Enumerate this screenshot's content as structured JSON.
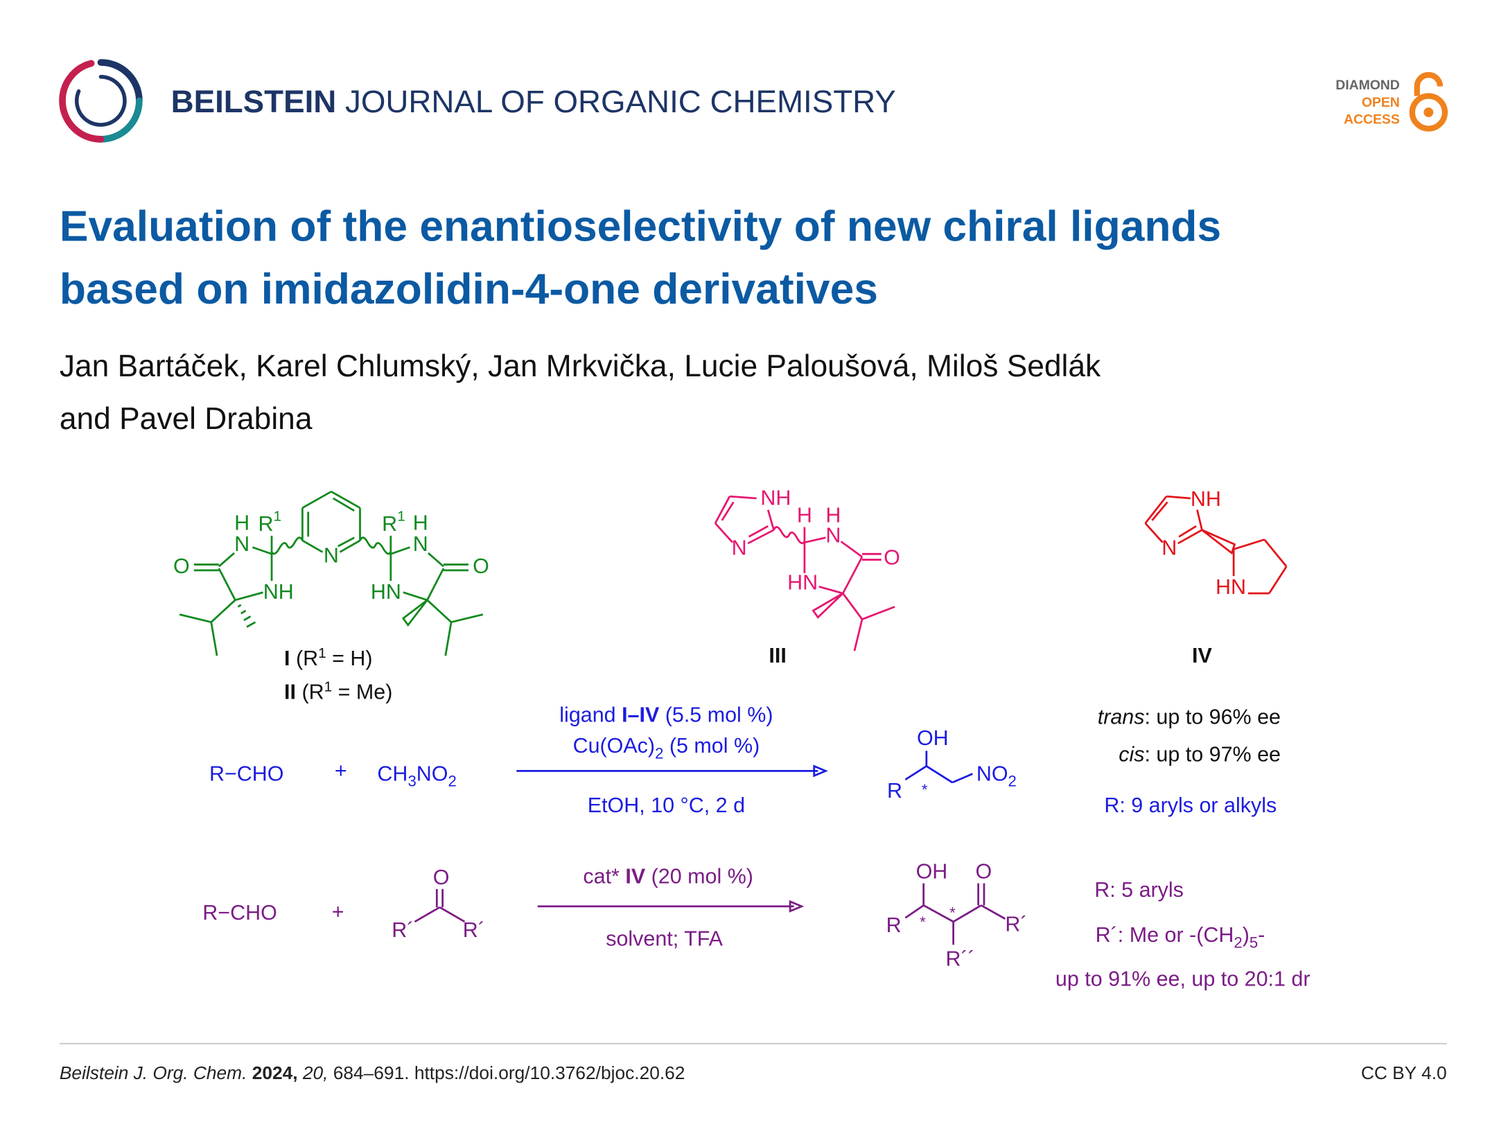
{
  "header": {
    "journal_bold": "BEILSTEIN",
    "journal_rest": "JOURNAL OF ORGANIC CHEMISTRY",
    "badge": [
      "DIAMOND",
      "OPEN",
      "ACCESS"
    ]
  },
  "title": [
    "Evaluation of the enantioselectivity of new chiral ligands",
    "based on imidazolidin-4-one derivatives"
  ],
  "authors": [
    "Jan Bartáček, Karel Chlumský, Jan Mrkvička, Lucie Paloušová, Miloš Sedlák",
    "and Pavel Drabina"
  ],
  "scheme": {
    "ligand_1_2": {
      "atoms": [
        "H",
        "R",
        "1",
        "N",
        "NH",
        "O",
        "N",
        "R",
        "1",
        "H",
        "N",
        "HN",
        "O"
      ],
      "captions": [
        [
          "I",
          " (R",
          "1",
          " = H)"
        ],
        [
          "II",
          " (R",
          "1",
          " = Me)"
        ]
      ]
    },
    "ligand_3": {
      "atoms": [
        "NH",
        "N",
        "H",
        "H",
        "N",
        "HN",
        "O"
      ],
      "caption": "III"
    },
    "ligand_4": {
      "atoms": [
        "NH",
        "N",
        "HN"
      ],
      "caption": "IV"
    },
    "reaction_1": {
      "reactant_1": "R−CHO",
      "plus": "+",
      "reactant_2": [
        "CH",
        "3",
        "NO",
        "2"
      ],
      "above": [
        [
          "ligand ",
          "I–IV",
          " (5.5 mol %)"
        ],
        [
          "Cu(OAc)",
          "2",
          " (5 mol %)"
        ]
      ],
      "below": "EtOH, 10 °C, 2 d",
      "product": {
        "oh": "OH",
        "r": "R",
        "star": "*",
        "no2": [
          "NO",
          "2"
        ]
      },
      "results": [
        [
          "trans",
          ": up to 96% ee"
        ],
        [
          "cis",
          ": up to 97% ee"
        ],
        "R: 9 aryls or alkyls"
      ]
    },
    "reaction_2": {
      "reactant_1": "R−CHO",
      "plus": "+",
      "ketone": {
        "o": "O",
        "r1": "R´",
        "r2": "R´"
      },
      "above": [
        "cat* ",
        "IV",
        " (20 mol %)"
      ],
      "below": "solvent; TFA",
      "product": {
        "oh": "OH",
        "o": "O",
        "r": "R",
        "stars": [
          "*",
          "*"
        ],
        "r1": "R´",
        "r2": "R´´"
      },
      "results": [
        "R: 5 aryls",
        [
          "R´: Me or -(CH",
          "2",
          ")",
          "5",
          "-"
        ],
        "up to 91% ee, up to 20:1 dr"
      ]
    }
  },
  "footer": {
    "citation": [
      "Beilstein J. Org. Chem.",
      " 2024,",
      " 20,",
      " 684–691. https://doi.org/10.3762/bjoc.20.62"
    ],
    "license": "CC BY 4.0"
  }
}
